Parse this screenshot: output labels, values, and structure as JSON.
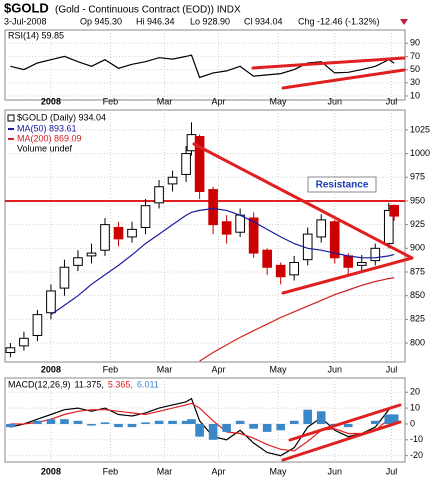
{
  "header": {
    "symbol": "$GOLD",
    "name": "(Gold - Continuous Contract (EOD)) INDX",
    "date": "3-Jul-2008",
    "open": "Op 945.30",
    "high": "Hi 946.34",
    "low": "Lo 928.90",
    "close": "Cl 934.04",
    "change": "Chg -12.46 (-1.32%)"
  },
  "chart_data": [
    {
      "type": "line",
      "title": "RSI(14) 59.85",
      "x": [
        -15,
        -10,
        -5,
        0,
        5,
        10,
        15,
        20,
        25,
        30,
        35,
        40,
        45,
        50,
        52,
        55,
        60,
        65,
        70,
        75,
        80,
        85,
        90,
        95,
        100,
        105,
        110,
        115,
        120,
        125,
        127
      ],
      "xlim": [
        -17,
        131
      ],
      "xticks": [
        {
          "value": 0,
          "label": "2008"
        },
        {
          "value": 22,
          "label": "Feb"
        },
        {
          "value": 42,
          "label": "Mar"
        },
        {
          "value": 62,
          "label": "Apr"
        },
        {
          "value": 84,
          "label": "May"
        },
        {
          "value": 105,
          "label": "Jun"
        },
        {
          "value": 126,
          "label": "Jul"
        }
      ],
      "ylim": [
        4,
        110
      ],
      "yticks": [
        10,
        30,
        50,
        70,
        90
      ],
      "grid": true,
      "series": [
        {
          "name": "RSI(14)",
          "color": "#000000",
          "kind": "line",
          "values": [
            55,
            50,
            60,
            65,
            70,
            62,
            55,
            65,
            52,
            58,
            62,
            68,
            66,
            70,
            72,
            38,
            45,
            48,
            55,
            40,
            42,
            44,
            50,
            60,
            62,
            45,
            46,
            50,
            55,
            65,
            59.85
          ]
        }
      ]
    },
    {
      "type": "candlestick",
      "title": "$GOLD (Daily) 934.04",
      "x": [
        -15,
        -10,
        -5,
        0,
        5,
        10,
        15,
        20,
        25,
        30,
        35,
        40,
        45,
        50,
        52,
        55,
        60,
        65,
        70,
        75,
        80,
        85,
        90,
        95,
        100,
        105,
        110,
        115,
        120,
        125,
        127
      ],
      "xlim": [
        -17,
        131
      ],
      "xticks": [
        {
          "value": 0,
          "label": "2008"
        },
        {
          "value": 22,
          "label": "Feb"
        },
        {
          "value": 42,
          "label": "Mar"
        },
        {
          "value": 62,
          "label": "Apr"
        },
        {
          "value": 84,
          "label": "May"
        },
        {
          "value": 105,
          "label": "Jun"
        },
        {
          "value": 126,
          "label": "Jul"
        }
      ],
      "ylim": [
        780,
        1046
      ],
      "yticks": [
        800,
        825,
        850,
        875,
        900,
        925,
        950,
        975,
        1000,
        1025
      ],
      "grid": true,
      "up_color": "#000000",
      "down_color": "#cc0000",
      "open": [
        790,
        797,
        808,
        832,
        858,
        882,
        892,
        898,
        922,
        912,
        922,
        948,
        968,
        978,
        1003,
        1018,
        962,
        928,
        917,
        932,
        898,
        882,
        872,
        888,
        912,
        928,
        892,
        882,
        887,
        905,
        945.3
      ],
      "high": [
        800,
        812,
        835,
        862,
        888,
        898,
        905,
        932,
        928,
        928,
        952,
        972,
        982,
        1008,
        1033,
        1020,
        965,
        935,
        942,
        938,
        900,
        885,
        892,
        922,
        936,
        930,
        895,
        893,
        905,
        948,
        946.34
      ],
      "low": [
        785,
        792,
        802,
        825,
        850,
        876,
        884,
        892,
        902,
        906,
        915,
        942,
        960,
        970,
        998,
        952,
        915,
        905,
        912,
        890,
        872,
        862,
        866,
        882,
        906,
        884,
        870,
        874,
        882,
        900,
        928.9
      ],
      "close": [
        795,
        805,
        830,
        855,
        880,
        890,
        895,
        925,
        910,
        920,
        945,
        965,
        975,
        1000,
        1020,
        960,
        925,
        915,
        935,
        895,
        880,
        870,
        885,
        915,
        930,
        890,
        880,
        885,
        900,
        940,
        934.04
      ],
      "hline": 950,
      "hline_color": "#e02020",
      "annotation": "Resistance",
      "volume_label": "Volume undef",
      "series": [
        {
          "name": "MA(50) 893.61",
          "color": "#1a1aa0",
          "kind": "line",
          "values": [
            null,
            null,
            null,
            830,
            840,
            850,
            862,
            872,
            882,
            893,
            905,
            915,
            925,
            935,
            938,
            940,
            942,
            940,
            935,
            928,
            920,
            912,
            905,
            900,
            898,
            895,
            892,
            890,
            890,
            892,
            893.61
          ]
        },
        {
          "name": "MA(200) 869.09",
          "color": "#d02020",
          "kind": "line",
          "values": [
            null,
            null,
            null,
            null,
            null,
            null,
            null,
            null,
            null,
            null,
            null,
            null,
            null,
            null,
            null,
            781,
            790,
            798,
            806,
            813,
            820,
            827,
            833,
            839,
            845,
            851,
            856,
            861,
            865,
            868,
            869.09
          ]
        }
      ]
    },
    {
      "type": "line",
      "title": "MACD(12,26,9)",
      "x": [
        -15,
        -10,
        -5,
        0,
        5,
        10,
        15,
        20,
        25,
        30,
        35,
        40,
        45,
        50,
        52,
        55,
        60,
        65,
        70,
        75,
        80,
        85,
        90,
        95,
        100,
        105,
        110,
        115,
        120,
        125,
        127
      ],
      "xlim": [
        -17,
        131
      ],
      "xticks": [
        {
          "value": 0,
          "label": "2008"
        },
        {
          "value": 22,
          "label": "Feb"
        },
        {
          "value": 42,
          "label": "Mar"
        },
        {
          "value": 62,
          "label": "Apr"
        },
        {
          "value": 84,
          "label": "May"
        },
        {
          "value": 105,
          "label": "Jun"
        },
        {
          "value": 126,
          "label": "Jul"
        }
      ],
      "ylim": [
        -24,
        29
      ],
      "yticks": [
        -20,
        -10,
        0,
        10,
        20
      ],
      "grid": true,
      "series": [
        {
          "name": "11.375,",
          "color": "#000000",
          "kind": "line",
          "values": [
            -2,
            0,
            3,
            6,
            9,
            10,
            8,
            10,
            6,
            5,
            7,
            10,
            12,
            14,
            16,
            2,
            -8,
            -10,
            -4,
            -12,
            -18,
            -20,
            -15,
            -2,
            4,
            -4,
            -8,
            -6,
            -2,
            9,
            11.375
          ]
        },
        {
          "name": "5.365,",
          "color": "#e02020",
          "kind": "line",
          "values": [
            0,
            0,
            1,
            3,
            6,
            8,
            9,
            9,
            8,
            7,
            6,
            8,
            10,
            12,
            13,
            10,
            2,
            -5,
            -6,
            -9,
            -13,
            -16,
            -17,
            -11,
            -4,
            -3,
            -6,
            -6,
            -4,
            3,
            5.365
          ]
        },
        {
          "name": "6.011",
          "color": "#3a88c8",
          "kind": "bar",
          "values": [
            -2,
            0,
            2,
            3,
            3,
            2,
            -1,
            1,
            -2,
            -2,
            1,
            2,
            2,
            2,
            3,
            -8,
            -10,
            -5,
            2,
            -3,
            -5,
            -4,
            2,
            9,
            8,
            -1,
            -2,
            0,
            2,
            6,
            6.011
          ]
        }
      ]
    }
  ]
}
